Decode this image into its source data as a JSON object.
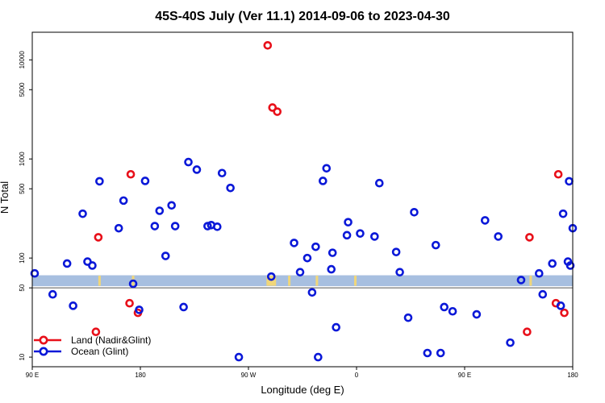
{
  "chart_data": {
    "type": "scatter",
    "title": "45S-40S July (Ver 11.1)   2014-09-06 to 2023-04-30",
    "xlabel": "Longitude (deg E)",
    "ylabel": "N Total",
    "y_scale": "log",
    "ylim": [
      8,
      19000
    ],
    "xlim": [
      90,
      540
    ],
    "x_tick_values": [
      90,
      180,
      270,
      360,
      450,
      540
    ],
    "x_tick_labels": [
      "90 E",
      "180",
      "90 W",
      "0",
      "90 E",
      "180"
    ],
    "y_tick_values": [
      10,
      50,
      100,
      500,
      1000,
      5000,
      10000
    ],
    "y_tick_labels": [
      "10",
      "50",
      "100",
      "500",
      "1000",
      "5000",
      "10000"
    ],
    "reference_line": 50,
    "band": {
      "low": 52,
      "high": 67,
      "color": "#a7bfe0"
    },
    "band_marker_color": "#f0d67a",
    "band_markers_x": [
      146,
      174,
      286,
      287,
      288,
      289,
      290,
      291,
      292,
      304,
      327,
      359,
      505
    ],
    "grid": false,
    "legend_position": "bottom-left",
    "series": [
      {
        "name": "Land (Nadir&Glint)",
        "color": "#e8101a",
        "x": [
          143,
          145,
          171,
          172,
          178,
          286,
          290,
          294,
          502,
          504,
          526,
          528,
          533
        ],
        "y": [
          18,
          162,
          35,
          700,
          28,
          14000,
          3300,
          3000,
          18,
          162,
          35,
          700,
          28
        ]
      },
      {
        "name": "Ocean (Glint)",
        "color": "#0a18d8",
        "x": [
          92,
          107,
          119,
          124,
          132,
          136,
          140,
          146,
          162,
          166,
          174,
          179,
          184,
          192,
          196,
          201,
          206,
          209,
          216,
          220,
          227,
          236,
          239,
          244,
          248,
          255,
          262,
          289,
          308,
          313,
          319,
          323,
          326,
          328,
          332,
          335,
          339,
          340,
          343,
          352,
          353,
          363,
          375,
          379,
          393,
          396,
          403,
          408,
          419,
          426,
          430,
          433,
          440,
          460,
          467,
          478,
          488,
          497,
          512,
          515,
          523,
          530,
          532,
          536,
          538,
          537,
          540
        ],
        "y": [
          70,
          43,
          88,
          33,
          280,
          92,
          84,
          595,
          200,
          380,
          55,
          30,
          600,
          210,
          300,
          105,
          340,
          210,
          32,
          930,
          780,
          210,
          215,
          207,
          720,
          510,
          10,
          65,
          142,
          72,
          100,
          45,
          130,
          10,
          600,
          805,
          77,
          113,
          20,
          170,
          230,
          177,
          165,
          570,
          115,
          72,
          25,
          290,
          11,
          135,
          11,
          32,
          29,
          27,
          240,
          165,
          14,
          60,
          70,
          43,
          88,
          33,
          280,
          92,
          84,
          595,
          200
        ]
      }
    ]
  }
}
